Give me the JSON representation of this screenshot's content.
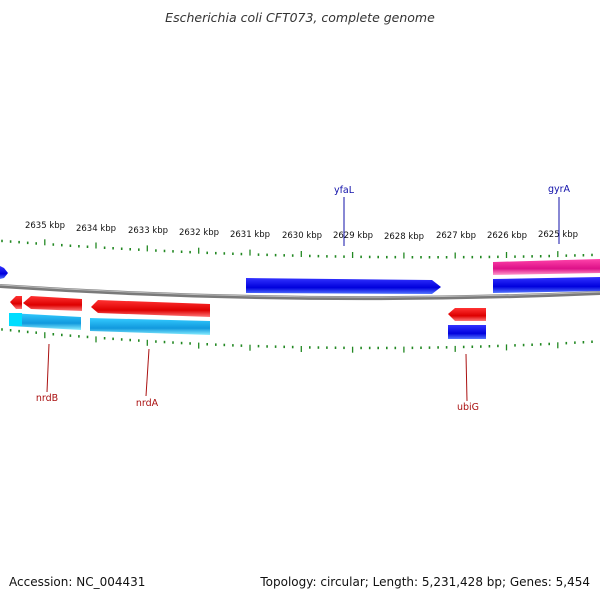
{
  "title": "Escherichia coli CFT073, complete genome",
  "footer": {
    "accession": "Accession: NC_004431",
    "info": "Topology: circular; Length: 5,231,428 bp; Genes: 5,454"
  },
  "scale_labels": [
    "2635 kbp",
    "2634 kbp",
    "2633 kbp",
    "2632 kbp",
    "2631 kbp",
    "2630 kbp",
    "2629 kbp",
    "2628 kbp",
    "2627 kbp",
    "2626 kbp",
    "2625 kbp"
  ],
  "gene_labels": {
    "yfaL": "yfaL",
    "gyrA": "gyrA",
    "nrdB": "nrdB",
    "nrdA": "nrdA",
    "ubiG": "ubiG"
  },
  "colors": {
    "forward_cds": "#0000ee",
    "reverse_cds": "#ee0000",
    "cyan_track": "#22bbee",
    "magenta_track": "#ee2288",
    "backbone": "#888888",
    "ticks": "#228822",
    "label_blue": "#1111aa",
    "label_red": "#aa1111"
  }
}
